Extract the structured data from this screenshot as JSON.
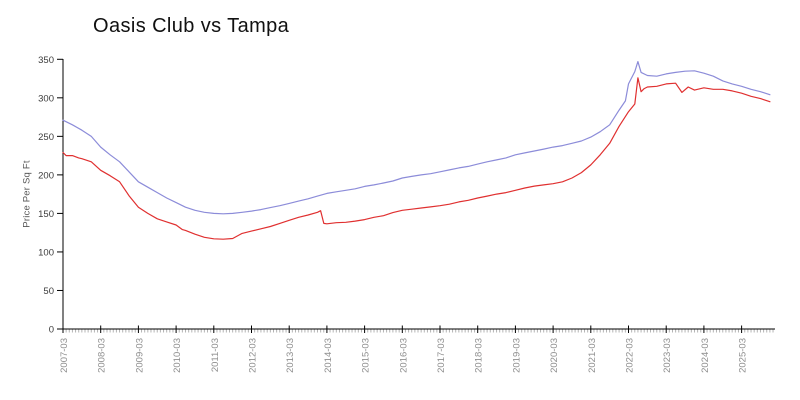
{
  "page": {
    "background": "#ffffff"
  },
  "chart_data": {
    "type": "line",
    "title": "Oasis Club vs Tampa",
    "xlabel": "",
    "ylabel": "Price Per Sq Ft",
    "ylim": [
      0,
      350
    ],
    "y_ticks": [
      0,
      50,
      100,
      150,
      200,
      250,
      300,
      350
    ],
    "x_tick_labels": [
      "2007-03",
      "2008-03",
      "2009-03",
      "2010-03",
      "2011-03",
      "2012-03",
      "2013-03",
      "2014-03",
      "2015-03",
      "2016-03",
      "2017-03",
      "2018-03",
      "2019-03",
      "2020-03",
      "2021-03",
      "2022-03",
      "2023-03",
      "2024-03",
      "2025-03"
    ],
    "x_minor_ticks": "monthly",
    "grid": "off",
    "legend": "none",
    "colors": {
      "axis": "#000000",
      "y_tick_label": "#3c3c3c",
      "x_tick_label": "#8f8f8f",
      "minor_tick": "#b4b4b4",
      "title": "#111111"
    },
    "series": [
      {
        "id": "blue-line",
        "color": "#8c8cd9",
        "points": [
          [
            "2007-03",
            271
          ],
          [
            "2007-06",
            265
          ],
          [
            "2007-09",
            258
          ],
          [
            "2007-12",
            250
          ],
          [
            "2008-03",
            236
          ],
          [
            "2008-06",
            226
          ],
          [
            "2008-09",
            217
          ],
          [
            "2008-12",
            204
          ],
          [
            "2009-03",
            191
          ],
          [
            "2009-06",
            184
          ],
          [
            "2009-09",
            177
          ],
          [
            "2009-12",
            170
          ],
          [
            "2010-03",
            164
          ],
          [
            "2010-06",
            158
          ],
          [
            "2010-09",
            154
          ],
          [
            "2010-12",
            151.5
          ],
          [
            "2011-03",
            150
          ],
          [
            "2011-06",
            149.5
          ],
          [
            "2011-09",
            150
          ],
          [
            "2011-12",
            151.5
          ],
          [
            "2012-03",
            153
          ],
          [
            "2012-06",
            155
          ],
          [
            "2012-09",
            157.5
          ],
          [
            "2012-12",
            160
          ],
          [
            "2013-03",
            163
          ],
          [
            "2013-06",
            166
          ],
          [
            "2013-09",
            169
          ],
          [
            "2013-12",
            172.5
          ],
          [
            "2014-03",
            176
          ],
          [
            "2014-06",
            178
          ],
          [
            "2014-09",
            180
          ],
          [
            "2014-12",
            182
          ],
          [
            "2015-03",
            185
          ],
          [
            "2015-06",
            187
          ],
          [
            "2015-09",
            189.5
          ],
          [
            "2015-12",
            192
          ],
          [
            "2016-03",
            196
          ],
          [
            "2016-06",
            198
          ],
          [
            "2016-09",
            200
          ],
          [
            "2016-12",
            201.5
          ],
          [
            "2017-03",
            204
          ],
          [
            "2017-06",
            206.5
          ],
          [
            "2017-09",
            209
          ],
          [
            "2017-12",
            211
          ],
          [
            "2018-03",
            214
          ],
          [
            "2018-06",
            217
          ],
          [
            "2018-09",
            219.5
          ],
          [
            "2018-12",
            222
          ],
          [
            "2019-03",
            226
          ],
          [
            "2019-06",
            228.5
          ],
          [
            "2019-09",
            231
          ],
          [
            "2019-12",
            233.5
          ],
          [
            "2020-03",
            236
          ],
          [
            "2020-06",
            238
          ],
          [
            "2020-09",
            241
          ],
          [
            "2020-12",
            244
          ],
          [
            "2021-03",
            249
          ],
          [
            "2021-06",
            256
          ],
          [
            "2021-09",
            265
          ],
          [
            "2021-12",
            284
          ],
          [
            "2022-02",
            296
          ],
          [
            "2022-03",
            318
          ],
          [
            "2022-05",
            334
          ],
          [
            "2022-06",
            347
          ],
          [
            "2022-07",
            333
          ],
          [
            "2022-09",
            329
          ],
          [
            "2022-12",
            328
          ],
          [
            "2023-03",
            331
          ],
          [
            "2023-06",
            333
          ],
          [
            "2023-09",
            334.5
          ],
          [
            "2023-12",
            335
          ],
          [
            "2024-03",
            332
          ],
          [
            "2024-06",
            328
          ],
          [
            "2024-09",
            322
          ],
          [
            "2024-12",
            318
          ],
          [
            "2025-03",
            315
          ],
          [
            "2025-06",
            311
          ],
          [
            "2025-09",
            308
          ],
          [
            "2025-12",
            304
          ]
        ]
      },
      {
        "id": "red-line",
        "color": "#e03030",
        "points": [
          [
            "2007-03",
            229
          ],
          [
            "2007-04",
            225
          ],
          [
            "2007-06",
            225
          ],
          [
            "2007-08",
            222
          ],
          [
            "2007-09",
            221
          ],
          [
            "2007-12",
            217
          ],
          [
            "2008-03",
            206
          ],
          [
            "2008-06",
            199
          ],
          [
            "2008-09",
            191
          ],
          [
            "2008-12",
            173
          ],
          [
            "2009-03",
            158
          ],
          [
            "2009-06",
            150
          ],
          [
            "2009-09",
            143
          ],
          [
            "2009-12",
            139
          ],
          [
            "2010-03",
            135
          ],
          [
            "2010-05",
            129
          ],
          [
            "2010-06",
            128
          ],
          [
            "2010-09",
            123
          ],
          [
            "2010-12",
            119
          ],
          [
            "2011-03",
            117
          ],
          [
            "2011-06",
            116.5
          ],
          [
            "2011-09",
            117.5
          ],
          [
            "2011-12",
            124
          ],
          [
            "2012-03",
            127
          ],
          [
            "2012-06",
            130
          ],
          [
            "2012-09",
            133
          ],
          [
            "2012-12",
            137
          ],
          [
            "2013-03",
            141
          ],
          [
            "2013-06",
            145
          ],
          [
            "2013-09",
            148
          ],
          [
            "2013-12",
            151.5
          ],
          [
            "2014-01",
            153.5
          ],
          [
            "2014-02",
            137
          ],
          [
            "2014-03",
            136.5
          ],
          [
            "2014-06",
            138
          ],
          [
            "2014-09",
            138.5
          ],
          [
            "2014-12",
            140
          ],
          [
            "2015-03",
            142
          ],
          [
            "2015-06",
            145
          ],
          [
            "2015-09",
            147
          ],
          [
            "2015-12",
            151
          ],
          [
            "2016-03",
            154
          ],
          [
            "2016-06",
            155.5
          ],
          [
            "2016-09",
            157
          ],
          [
            "2016-12",
            158.5
          ],
          [
            "2017-03",
            160
          ],
          [
            "2017-06",
            162
          ],
          [
            "2017-09",
            165
          ],
          [
            "2017-12",
            167
          ],
          [
            "2018-03",
            170
          ],
          [
            "2018-06",
            172.5
          ],
          [
            "2018-09",
            175
          ],
          [
            "2018-12",
            177
          ],
          [
            "2019-03",
            180
          ],
          [
            "2019-06",
            183
          ],
          [
            "2019-09",
            185.5
          ],
          [
            "2019-12",
            187
          ],
          [
            "2020-03",
            188.5
          ],
          [
            "2020-06",
            191
          ],
          [
            "2020-09",
            196
          ],
          [
            "2020-12",
            203
          ],
          [
            "2021-03",
            213
          ],
          [
            "2021-06",
            226
          ],
          [
            "2021-09",
            241
          ],
          [
            "2021-12",
            263
          ],
          [
            "2022-03",
            282
          ],
          [
            "2022-05",
            292
          ],
          [
            "2022-06",
            326
          ],
          [
            "2022-07",
            308
          ],
          [
            "2022-08",
            312
          ],
          [
            "2022-09",
            314
          ],
          [
            "2022-12",
            315
          ],
          [
            "2023-03",
            318
          ],
          [
            "2023-06",
            319
          ],
          [
            "2023-08",
            307
          ],
          [
            "2023-10",
            314
          ],
          [
            "2023-12",
            310
          ],
          [
            "2024-03",
            313
          ],
          [
            "2024-06",
            311
          ],
          [
            "2024-09",
            311
          ],
          [
            "2024-12",
            309
          ],
          [
            "2025-03",
            306
          ],
          [
            "2025-06",
            302
          ],
          [
            "2025-09",
            299
          ],
          [
            "2025-12",
            295
          ]
        ]
      }
    ]
  }
}
